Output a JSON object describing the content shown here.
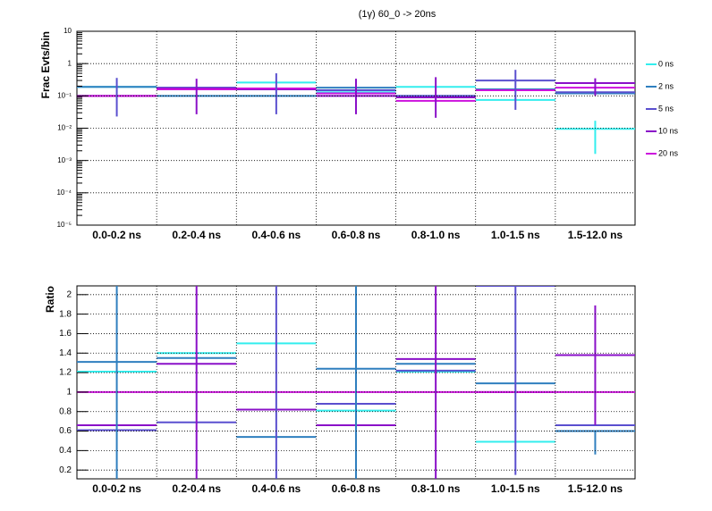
{
  "chart_data": [
    {
      "type": "line",
      "log": true,
      "title": "(1γ) 60_0 -> 20ns",
      "y_label": "Frac Evts/bin",
      "grid": true,
      "legend": "right",
      "categories": [
        "0.0-0.2 ns",
        "0.2-0.4 ns",
        "0.4-0.6 ns",
        "0.6-0.8 ns",
        "0.8-1.0 ns",
        "1.0-1.5 ns",
        "1.5-12.0 ns"
      ],
      "ylim": [
        1e-05,
        10
      ],
      "yticks": [
        {
          "value": 1e-05,
          "label": "10⁻⁵"
        },
        {
          "value": 0.0001,
          "label": "10⁻⁴"
        },
        {
          "value": 0.001,
          "label": "10⁻³"
        },
        {
          "value": 0.01,
          "label": "10⁻²"
        },
        {
          "value": 0.1,
          "label": "10⁻¹"
        },
        1,
        10
      ],
      "series": [
        {
          "name": "0 ns",
          "color": "#33eeee",
          "values": [
            0.19,
            0.17,
            0.26,
            0.13,
            0.19,
            0.075,
            0.0095
          ]
        },
        {
          "name": "2 ns",
          "color": "#2f7fbf",
          "values": [
            0.19,
            0.1,
            0.1,
            0.18,
            0.1,
            0.16,
            0.12
          ]
        },
        {
          "name": "5 ns",
          "color": "#5a4fcf",
          "values": [
            0.1,
            0.18,
            0.17,
            0.15,
            0.1,
            0.3,
            0.13
          ]
        },
        {
          "name": "10 ns",
          "color": "#8a10c8",
          "values": [
            0.1,
            0.17,
            0.16,
            0.1,
            0.09,
            0.15,
            0.25
          ]
        },
        {
          "name": "20 ns",
          "color": "#cc11dd",
          "values": [
            0.1,
            0.16,
            0.17,
            0.12,
            0.07,
            0.15,
            0.18
          ]
        }
      ],
      "error_bars": [
        {
          "category": 0,
          "series": 2,
          "low": 0.023,
          "high": 0.36
        },
        {
          "category": 1,
          "series": 3,
          "low": 0.027,
          "high": 0.34
        },
        {
          "category": 2,
          "series": 2,
          "low": 0.027,
          "high": 0.5
        },
        {
          "category": 3,
          "series": 3,
          "low": 0.027,
          "high": 0.34
        },
        {
          "category": 4,
          "series": 3,
          "low": 0.021,
          "high": 0.38
        },
        {
          "category": 5,
          "series": 2,
          "low": 0.037,
          "high": 0.64
        },
        {
          "category": 6,
          "series": 0,
          "low": 0.0016,
          "high": 0.017
        },
        {
          "category": 6,
          "series": 3,
          "low": 0.1,
          "high": 0.35
        }
      ]
    },
    {
      "type": "line",
      "log": false,
      "y_label": "Ratio",
      "grid": true,
      "categories": [
        "0.0-0.2 ns",
        "0.2-0.4 ns",
        "0.4-0.6 ns",
        "0.6-0.8 ns",
        "0.8-1.0 ns",
        "1.0-1.5 ns",
        "1.5-12.0 ns"
      ],
      "ylim": [
        0.11,
        2.09
      ],
      "yticks": [
        0.2,
        0.4,
        0.6,
        0.8,
        1,
        1.2,
        1.4,
        1.6,
        1.8,
        2
      ],
      "series": [
        {
          "color": "#33eeee",
          "values": [
            1.21,
            1.4,
            1.5,
            0.81,
            1.21,
            0.49,
            null
          ]
        },
        {
          "color": "#2f7fbf",
          "values": [
            1.31,
            1.35,
            0.54,
            1.24,
            1.29,
            1.09,
            0.6
          ]
        },
        {
          "color": "#5a4fcf",
          "values": [
            0.61,
            0.69,
            0.82,
            0.88,
            1.22,
            2.09,
            0.66
          ]
        },
        {
          "color": "#8a10c8",
          "values": [
            0.66,
            1.29,
            0.82,
            0.66,
            1.34,
            1,
            1.38
          ]
        },
        {
          "color": "#cc11dd",
          "values": [
            1,
            1,
            1,
            1,
            1,
            1,
            1
          ]
        }
      ],
      "error_bars": [
        {
          "category": 0,
          "series": 1,
          "low": 0.11,
          "high": 2.09
        },
        {
          "category": 1,
          "series": 3,
          "low": 0.11,
          "high": 2.09
        },
        {
          "category": 2,
          "series": 2,
          "low": 0.11,
          "high": 2.09
        },
        {
          "category": 3,
          "series": 1,
          "low": 0.11,
          "high": 2.09
        },
        {
          "category": 4,
          "series": 3,
          "low": 0.11,
          "high": 2.09
        },
        {
          "category": 5,
          "series": 2,
          "low": 0.15,
          "high": 2.09
        },
        {
          "category": 6,
          "series": 3,
          "low": 0.66,
          "high": 1.89
        },
        {
          "category": 6,
          "series": 1,
          "low": 0.36,
          "high": 0.6
        }
      ]
    }
  ]
}
